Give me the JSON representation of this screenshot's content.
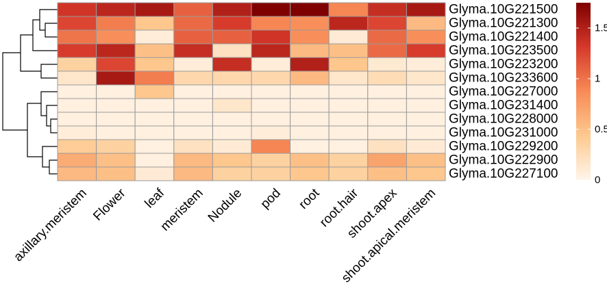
{
  "chart_data": {
    "type": "heatmap",
    "title": "",
    "columns": [
      "axillary.meristem",
      "Flower",
      "leaf",
      "meristem",
      "Nodule",
      "pod",
      "root",
      "root.hair",
      "shoot.apex",
      "shoot.apical.meristem"
    ],
    "rows": [
      "Glyma.10G221500",
      "Glyma.10G221300",
      "Glyma.10G221400",
      "Glyma.10G223500",
      "Glyma.10G223200",
      "Glyma.10G233600",
      "Glyma.10G227000",
      "Glyma.10G231400",
      "Glyma.10G228000",
      "Glyma.10G231000",
      "Glyma.10G229200",
      "Glyma.10G222900",
      "Glyma.10G227100"
    ],
    "values": [
      [
        1.35,
        1.45,
        1.55,
        1.1,
        1.5,
        1.75,
        1.75,
        0.9,
        1.4,
        1.55
      ],
      [
        1.25,
        0.95,
        0.45,
        1.05,
        1.3,
        0.9,
        0.85,
        1.45,
        1.25,
        0.55
      ],
      [
        1.0,
        0.85,
        0.08,
        1.1,
        1.1,
        1.35,
        0.85,
        0.1,
        1.05,
        0.85
      ],
      [
        1.3,
        1.45,
        0.5,
        1.4,
        0.2,
        1.45,
        0.55,
        0.5,
        1.05,
        1.3
      ],
      [
        0.35,
        1.25,
        0.45,
        0.08,
        1.4,
        0.08,
        1.5,
        0.45,
        0.12,
        0.08
      ],
      [
        0.15,
        1.55,
        0.95,
        0.3,
        0.3,
        0.3,
        0.55,
        0.15,
        0.25,
        0.15
      ],
      [
        0.05,
        0.05,
        0.45,
        0.05,
        0.05,
        0.05,
        0.05,
        0.05,
        0.05,
        0.05
      ],
      [
        0.05,
        0.05,
        0.05,
        0.05,
        0.15,
        0.05,
        0.05,
        0.05,
        0.05,
        0.05
      ],
      [
        0.05,
        0.05,
        0.05,
        0.05,
        0.05,
        0.05,
        0.05,
        0.05,
        0.05,
        0.05
      ],
      [
        0.08,
        0.05,
        0.05,
        0.05,
        0.05,
        0.08,
        0.05,
        0.05,
        0.05,
        0.05
      ],
      [
        0.4,
        0.35,
        0.05,
        0.2,
        0.1,
        0.9,
        0.05,
        0.05,
        0.2,
        0.1
      ],
      [
        0.65,
        0.5,
        0.05,
        0.55,
        0.45,
        0.35,
        0.5,
        0.35,
        0.7,
        0.5
      ],
      [
        0.55,
        0.5,
        0.1,
        0.55,
        0.35,
        0.35,
        0.45,
        0.35,
        0.5,
        0.45
      ]
    ],
    "scale_min": 0,
    "scale_max": 1.75,
    "colorbar_ticks": [
      0,
      0.5,
      1,
      1.5
    ],
    "colorbar_tick_labels": [
      "0",
      "0.5",
      "1",
      "1.5"
    ],
    "colors": {
      "low": "#fff5ea",
      "quarter": "#fdc98f",
      "mid": "#f88b57",
      "three_quarter": "#d6392b",
      "high": "#7f0000"
    },
    "row_dendrogram": "two main clusters: (((Glyma.10G221500,(Glyma.10G221300,Glyma.10G221400)),Glyma.10G223500),(Glyma.10G223200,Glyma.10G233600)) and ((Glyma.10G227000,(Glyma.10G231400,(Glyma.10G228000,Glyma.10G231000))),(Glyma.10G229200,(Glyma.10G222900,Glyma.10G227100)))"
  }
}
